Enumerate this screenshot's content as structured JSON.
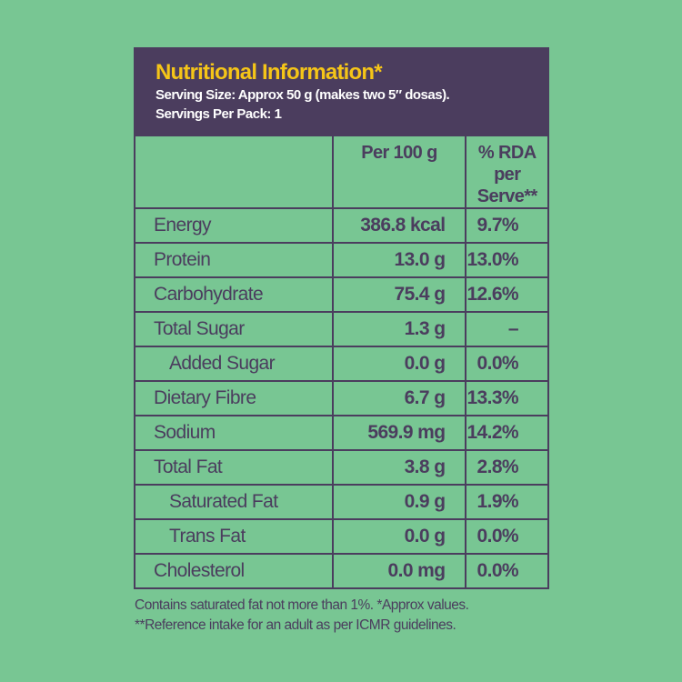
{
  "header": {
    "title": "Nutritional Information*",
    "serving_size": "Serving Size: Approx 50 g (makes two 5″ dosas).",
    "servings_per_pack": "Servings Per Pack: 1"
  },
  "columns": [
    "",
    "Per 100 g",
    "% RDA",
    "per Serve**"
  ],
  "rows": [
    {
      "name": "Energy",
      "per100": "386.8 kcal",
      "rda": "9.7%",
      "indent": false
    },
    {
      "name": "Protein",
      "per100": "13.0 g",
      "rda": "13.0%",
      "indent": false
    },
    {
      "name": "Carbohydrate",
      "per100": "75.4 g",
      "rda": "12.6%",
      "indent": false
    },
    {
      "name": "Total Sugar",
      "per100": "1.3 g",
      "rda": "–",
      "indent": false
    },
    {
      "name": "Added Sugar",
      "per100": "0.0 g",
      "rda": "0.0%",
      "indent": true
    },
    {
      "name": "Dietary Fibre",
      "per100": "6.7 g",
      "rda": "13.3%",
      "indent": false
    },
    {
      "name": "Sodium",
      "per100": "569.9 mg",
      "rda": "14.2%",
      "indent": false
    },
    {
      "name": "Total Fat",
      "per100": "3.8 g",
      "rda": "2.8%",
      "indent": false
    },
    {
      "name": "Saturated Fat",
      "per100": "0.9 g",
      "rda": "1.9%",
      "indent": true
    },
    {
      "name": "Trans Fat",
      "per100": "0.0 g",
      "rda": "0.0%",
      "indent": true
    },
    {
      "name": "Cholesterol",
      "per100": "0.0 mg",
      "rda": "0.0%",
      "indent": false
    }
  ],
  "footnotes": [
    "Contains saturated fat not more than 1%. *Approx values.",
    "**Reference intake for an adult as per ICMR guidelines."
  ],
  "colors": {
    "background": "#78c693",
    "panel": "#4b3d5e",
    "title": "#f5c518"
  }
}
